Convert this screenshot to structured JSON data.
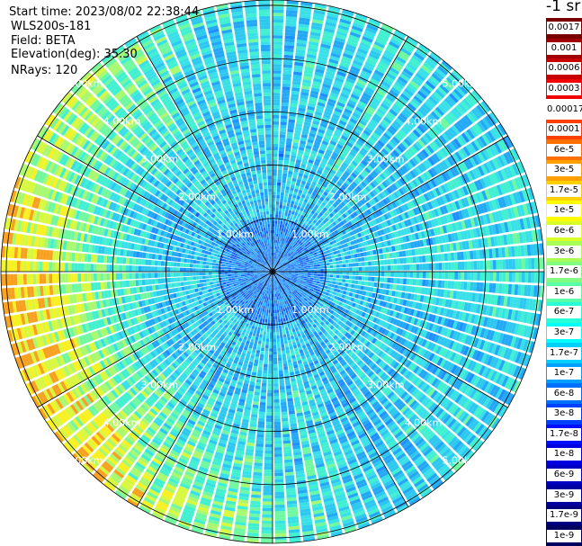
{
  "header": {
    "start_time": "Start time: 2023/08/02 22:38:44",
    "device": "WLS200s-181",
    "field": "Field: BETA",
    "elevation": "Elevation(deg): 35.30",
    "nrays": "NRays: 120"
  },
  "colorbar": {
    "title": "-1 sr",
    "labels": [
      "0.0017",
      "0.001",
      "0.0006",
      "0.0003",
      "0.00017",
      "0.0001",
      "6e-5",
      "3e-5",
      "1.7e-5",
      "1e-5",
      "6e-6",
      "3e-6",
      "1.7e-6",
      "1e-6",
      "6e-7",
      "3e-7",
      "1.7e-7",
      "1e-7",
      "6e-8",
      "3e-8",
      "1.7e-8",
      "1e-8",
      "6e-9",
      "3e-9",
      "1.7e-9",
      "1e-9"
    ],
    "colors": [
      "#7a0000",
      "#a00000",
      "#c80000",
      "#f00000",
      "#ffffff",
      "#ff4000",
      "#ff7000",
      "#ffa000",
      "#ffd000",
      "#ffff00",
      "#d8ff28",
      "#a8ff58",
      "#80ff80",
      "#58ffa8",
      "#28ffd8",
      "#00ffff",
      "#00d0ff",
      "#00a0ff",
      "#0070ff",
      "#0040ff",
      "#0010ff",
      "#0000e0",
      "#0000c0",
      "#0000a0",
      "#000080",
      "#000060"
    ]
  },
  "range_labels": [
    "1.00km",
    "2.00km",
    "3.00km",
    "4.00km",
    "5.00km"
  ],
  "chart_data": {
    "type": "heatmap",
    "projection": "polar PPI",
    "field": "BETA",
    "units": "-1 sr",
    "elevation_deg": 35.3,
    "nrays": 120,
    "range_rings_km": [
      1,
      2,
      3,
      4,
      5
    ],
    "max_range_km": 5.1,
    "spoke_angles_deg": [
      0,
      30,
      60,
      90,
      120,
      150,
      180,
      210,
      240,
      270,
      300,
      330
    ],
    "value_range": [
      1e-09,
      0.0017
    ],
    "colorscale": "log",
    "typical_values": {
      "near_field_below_1km": "approx 1e-8 to 3e-8",
      "mid_field_1_to_4km": "approx 3e-8 to 1.7e-7",
      "outer_west_4_to_5km": "approx 1e-7 to 1.7e-6"
    }
  }
}
